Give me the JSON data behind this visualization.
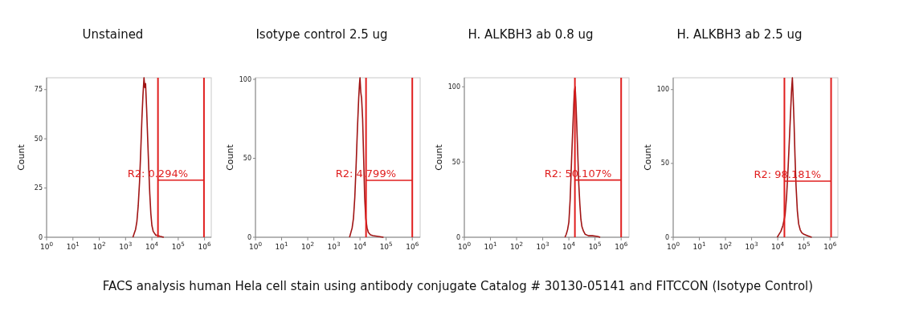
{
  "chart_data": [
    {
      "type": "line",
      "title": "Unstained",
      "ylabel": "Count",
      "log": "x",
      "xlim": [
        1,
        1800000
      ],
      "ylim": [
        0,
        81
      ],
      "yticks": [
        0,
        25,
        50,
        75
      ],
      "xticks": [
        {
          "value": 1,
          "label": "10$^{0}$"
        },
        {
          "value": 10,
          "label": "10$^{1}$"
        },
        {
          "value": 100,
          "label": "10$^{2}$"
        },
        {
          "value": 1000,
          "label": "10$^{3}$"
        },
        {
          "value": 10000,
          "label": "10$^{4}$"
        },
        {
          "value": 100000,
          "label": "10$^{5}$"
        },
        {
          "value": 1000000,
          "label": "10$^{6}$"
        }
      ],
      "series": [
        {
          "color": "#a01414",
          "x": [
            1900,
            2140,
            2400,
            2690,
            3020,
            3390,
            3800,
            4170,
            4570,
            5010,
            5370,
            5750,
            6310,
            6920,
            7590,
            8320,
            9120,
            10000,
            11200,
            12600,
            14100,
            15800,
            20000,
            28200
          ],
          "values": [
            0,
            2,
            4,
            8,
            16,
            28,
            45,
            60,
            72,
            81,
            76,
            78,
            65,
            50,
            35,
            22,
            12,
            6,
            3,
            2,
            1,
            1,
            0.5,
            0
          ]
        },
        {
          "name": "R2: 0.294%",
          "color": "#e01e1e",
          "x": [
            17000,
            950000
          ],
          "values": [
            29,
            29
          ]
        }
      ],
      "ref_lines": [
        {
          "axis": "x",
          "value": 17000,
          "color": "#e01e1e"
        },
        {
          "axis": "x",
          "value": 950000,
          "color": "#e01e1e"
        }
      ]
    },
    {
      "type": "line",
      "title": "Isotype control 2.5 ug",
      "ylabel": "Count",
      "log": "x",
      "xlim": [
        1,
        2000000
      ],
      "ylim": [
        0,
        101
      ],
      "yticks": [
        0,
        50,
        100
      ],
      "xticks": [
        {
          "value": 1,
          "label": "10$^{0}$"
        },
        {
          "value": 10,
          "label": "10$^{1}$"
        },
        {
          "value": 100,
          "label": "10$^{2}$"
        },
        {
          "value": 1000,
          "label": "10$^{3}$"
        },
        {
          "value": 10000,
          "label": "10$^{4}$"
        },
        {
          "value": 100000,
          "label": "10$^{5}$"
        },
        {
          "value": 1000000,
          "label": "10$^{6}$"
        }
      ],
      "series": [
        {
          "color": "#a01414",
          "x": [
            3980,
            4470,
            5010,
            5620,
            6310,
            7080,
            7940,
            8910,
            9550,
            10000,
            10700,
            11500,
            12600,
            13800,
            15100,
            16600,
            18600,
            20900,
            25100,
            31600,
            50100,
            79400
          ],
          "values": [
            0,
            3,
            6,
            12,
            25,
            45,
            68,
            88,
            97,
            101,
            92,
            88,
            75,
            50,
            25,
            12,
            6,
            3,
            1.5,
            1,
            0.5,
            0
          ]
        },
        {
          "name": "R2: 4.799%",
          "color": "#e01e1e",
          "x": [
            17000,
            1000000
          ],
          "values": [
            36,
            36
          ]
        }
      ],
      "ref_lines": [
        {
          "axis": "x",
          "value": 17000,
          "color": "#e01e1e"
        },
        {
          "axis": "x",
          "value": 1000000,
          "color": "#e01e1e"
        }
      ]
    },
    {
      "type": "line",
      "title": "H. ALKBH3 ab 0.8 ug",
      "ylabel": "Count",
      "log": "x",
      "xlim": [
        1,
        2000000
      ],
      "ylim": [
        0,
        106
      ],
      "yticks": [
        0,
        50,
        100
      ],
      "xticks": [
        {
          "value": 1,
          "label": "10$^{0}$"
        },
        {
          "value": 10,
          "label": "10$^{1}$"
        },
        {
          "value": 100,
          "label": "10$^{2}$"
        },
        {
          "value": 1000,
          "label": "10$^{3}$"
        },
        {
          "value": 10000,
          "label": "10$^{4}$"
        },
        {
          "value": 100000,
          "label": "10$^{5}$"
        },
        {
          "value": 1000000,
          "label": "10$^{6}$"
        }
      ],
      "series": [
        {
          "color": "#a01414",
          "x": [
            7080,
            7940,
            8910,
            10000,
            11200,
            12600,
            13800,
            15100,
            16200,
            17400,
            18600,
            20000,
            21900,
            24000,
            26300,
            28800,
            31600,
            36300,
            41700,
            56200,
            79400,
            126000,
            158000
          ],
          "values": [
            0,
            2,
            5,
            10,
            25,
            50,
            68,
            85,
            97,
            100,
            90,
            75,
            55,
            35,
            22,
            12,
            7,
            4,
            2,
            1,
            1,
            0.5,
            0
          ]
        },
        {
          "name": "R2: 50.107%",
          "color": "#e01e1e",
          "x": [
            17000,
            1000000
          ],
          "values": [
            38,
            38
          ]
        }
      ],
      "ref_lines": [
        {
          "axis": "x",
          "value": 17000,
          "color": "#e01e1e"
        },
        {
          "axis": "x",
          "value": 1000000,
          "color": "#e01e1e"
        }
      ]
    },
    {
      "type": "line",
      "title": "H. ALKBH3 ab 2.5 ug",
      "ylabel": "Count",
      "log": "x",
      "xlim": [
        1,
        2000000
      ],
      "ylim": [
        0,
        108
      ],
      "yticks": [
        0,
        50,
        100
      ],
      "xticks": [
        {
          "value": 1,
          "label": "10$^{0}$"
        },
        {
          "value": 10,
          "label": "10$^{1}$"
        },
        {
          "value": 100,
          "label": "10$^{2}$"
        },
        {
          "value": 1000,
          "label": "10$^{3}$"
        },
        {
          "value": 10000,
          "label": "10$^{4}$"
        },
        {
          "value": 100000,
          "label": "10$^{5}$"
        },
        {
          "value": 1000000,
          "label": "10$^{6}$"
        }
      ],
      "series": [
        {
          "color": "#a01414",
          "x": [
            9550,
            11200,
            13200,
            15800,
            19100,
            21900,
            25100,
            28200,
            31600,
            33900,
            36300,
            38900,
            41700,
            45700,
            50100,
            56200,
            63100,
            72400,
            83200,
            100000,
            141000,
            200000
          ],
          "values": [
            0,
            2,
            4,
            8,
            15,
            28,
            48,
            68,
            88,
            100,
            108,
            95,
            80,
            55,
            35,
            18,
            9,
            5,
            3,
            2,
            1,
            0
          ]
        },
        {
          "name": "R2: 98.181%",
          "color": "#e01e1e",
          "x": [
            18000,
            1100000
          ],
          "values": [
            38,
            38
          ]
        }
      ],
      "ref_lines": [
        {
          "axis": "x",
          "value": 18000,
          "color": "#e01e1e"
        },
        {
          "axis": "x",
          "value": 1100000,
          "color": "#e01e1e"
        }
      ],
      "annotations": [
        "FACS analysis human Hela cell stain using antibody conjugate Catalog # 30130-05141 and FITCCON (Isotype Control)"
      ]
    }
  ]
}
